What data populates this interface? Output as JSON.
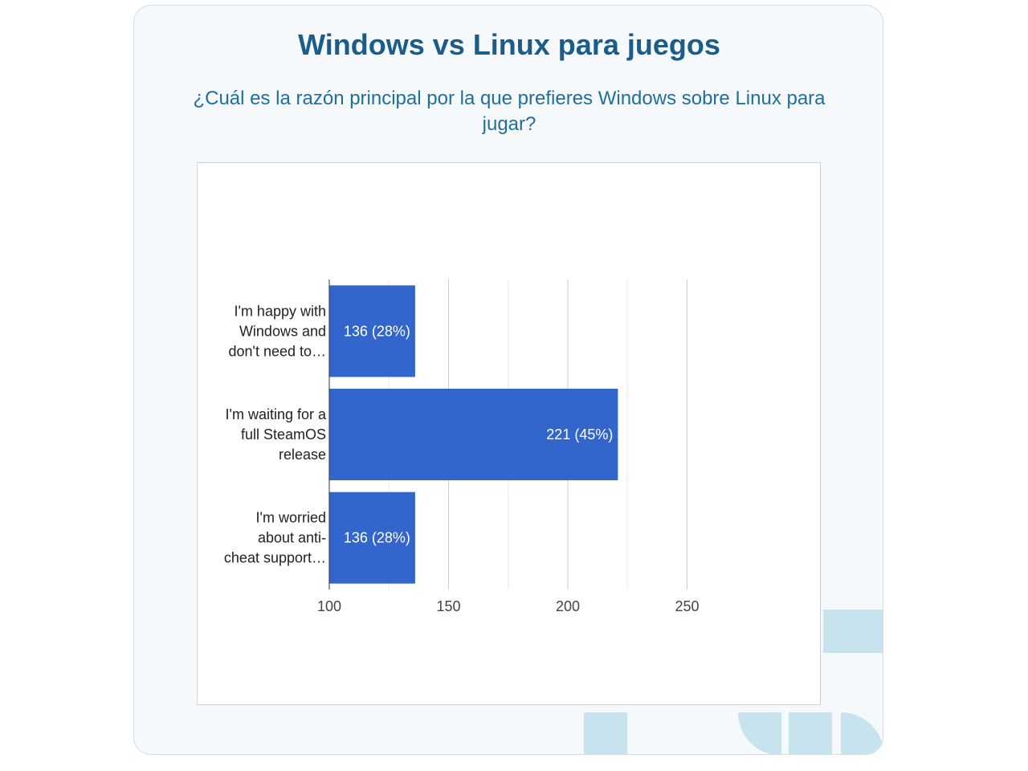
{
  "header": {
    "title": "Windows vs Linux para juegos",
    "question": "¿Cuál es la razón principal por la que prefieres Windows sobre Linux para jugar?"
  },
  "colors": {
    "bar": "#3366cc",
    "title": "#1a5c8a",
    "subtitle": "#1f6f9e",
    "card_bg": "#f5f9fc",
    "decor": "#c6e3ee"
  },
  "chart_data": {
    "type": "bar",
    "orientation": "horizontal",
    "categories": [
      [
        "I'm happy with",
        "Windows and",
        "don't need to…"
      ],
      [
        "I'm waiting for a",
        "full SteamOS",
        "release"
      ],
      [
        "I'm worried",
        "about anti-",
        "cheat support…"
      ]
    ],
    "values": [
      136,
      221,
      136
    ],
    "value_labels": [
      "136 (28%)",
      "221 (45%)",
      "136 (28%)"
    ],
    "xlim": [
      100,
      250
    ],
    "x_ticks": [
      100,
      150,
      200,
      250
    ],
    "grid": true,
    "legend": "none"
  }
}
